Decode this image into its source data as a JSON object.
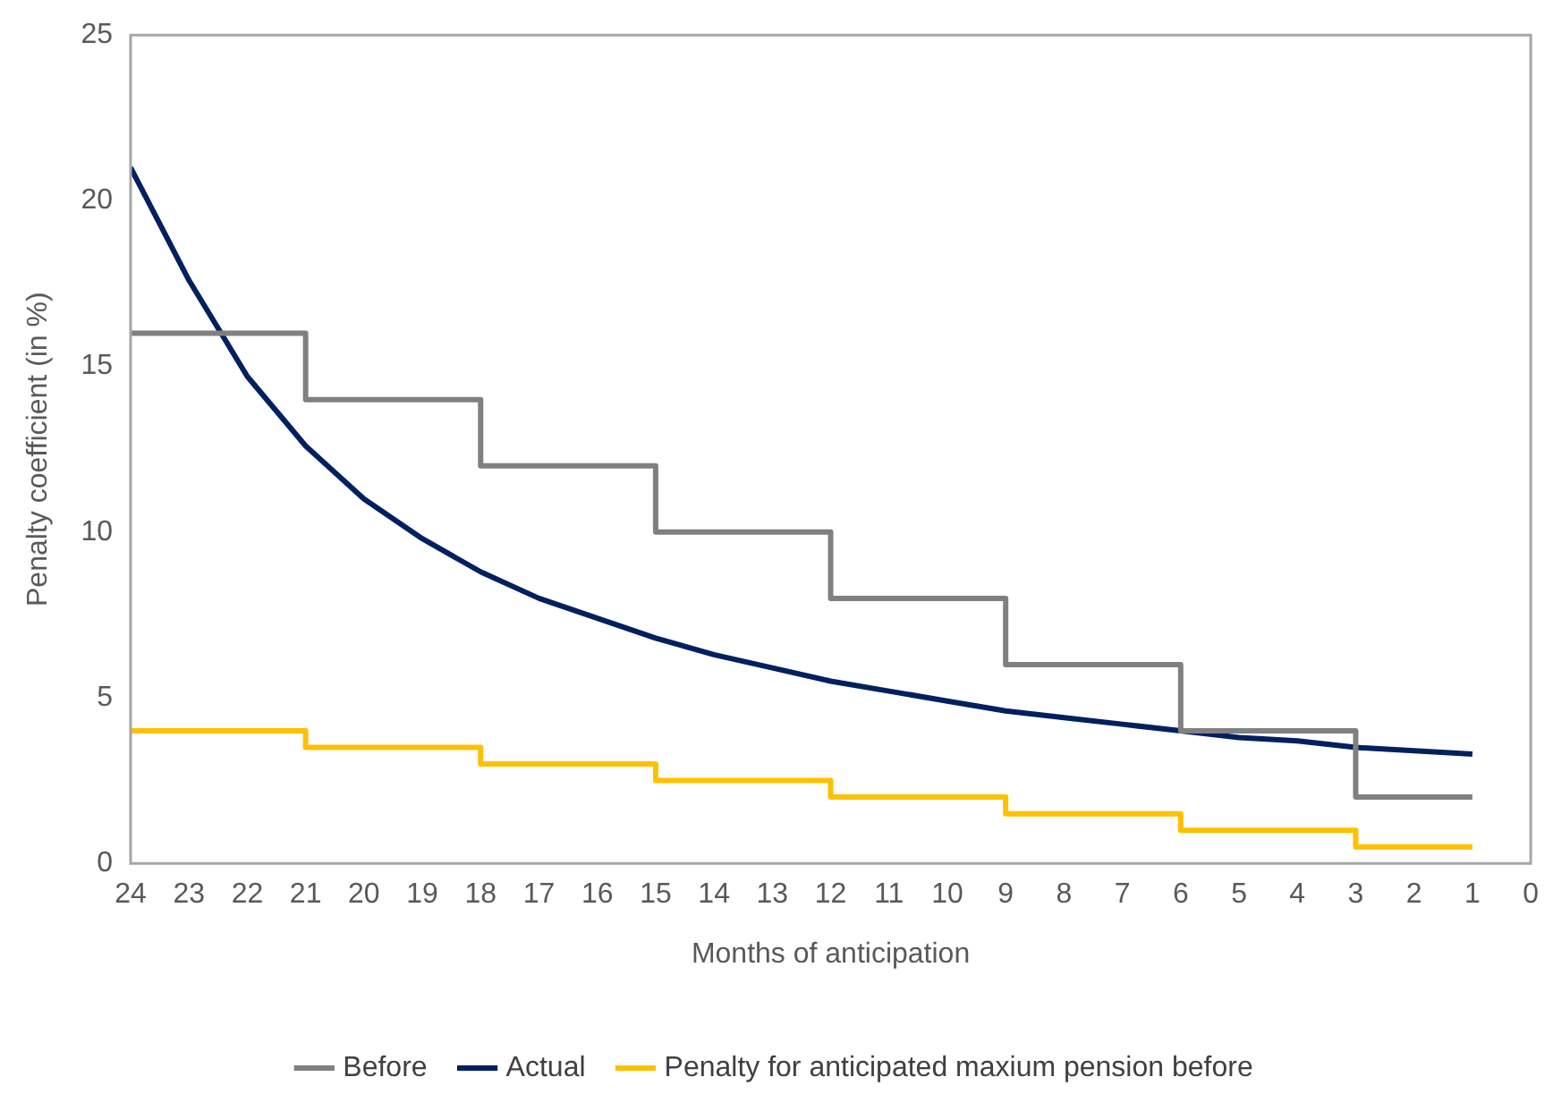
{
  "chart_data": {
    "type": "line",
    "xlabel": "Months of anticipation",
    "ylabel": "Penalty coefficient (in %)",
    "xlim": [
      24,
      0
    ],
    "xticks": [
      24,
      23,
      22,
      21,
      20,
      19,
      18,
      17,
      16,
      15,
      14,
      13,
      12,
      11,
      10,
      9,
      8,
      7,
      6,
      5,
      4,
      3,
      2,
      1,
      0
    ],
    "ylim": [
      0,
      25
    ],
    "yticks": [
      0,
      5,
      10,
      15,
      20,
      25
    ],
    "grid": false,
    "legend": "bottom",
    "marker": "none",
    "line_style": "solid",
    "series": [
      {
        "name": "Before",
        "type": "step",
        "color": "#808080",
        "x": [
          24,
          21,
          18,
          15,
          12,
          9,
          6,
          3,
          1
        ],
        "values": [
          16,
          14,
          12,
          10,
          8,
          6,
          4,
          2,
          2
        ]
      },
      {
        "name": "Actual",
        "color": "#002060",
        "x": [
          24,
          23,
          22,
          21,
          20,
          19,
          18,
          17,
          16,
          15,
          14,
          13,
          12,
          11,
          10,
          9,
          8,
          7,
          6,
          5,
          4,
          3,
          2,
          1
        ],
        "values": [
          21.0,
          17.6,
          14.7,
          12.6,
          11.0,
          9.8,
          8.8,
          8.0,
          7.4,
          6.8,
          6.3,
          5.9,
          5.5,
          5.2,
          4.9,
          4.6,
          4.4,
          4.2,
          4.0,
          3.8,
          3.7,
          3.5,
          3.4,
          3.3
        ]
      },
      {
        "name": "Penalty for anticipated maxium pension before",
        "type": "step",
        "color": "#ffc000",
        "x": [
          24,
          21,
          18,
          15,
          12,
          9,
          6,
          3,
          1
        ],
        "values": [
          4,
          3.5,
          3,
          2.5,
          2,
          1.5,
          1,
          0.5,
          0.5
        ]
      }
    ]
  }
}
